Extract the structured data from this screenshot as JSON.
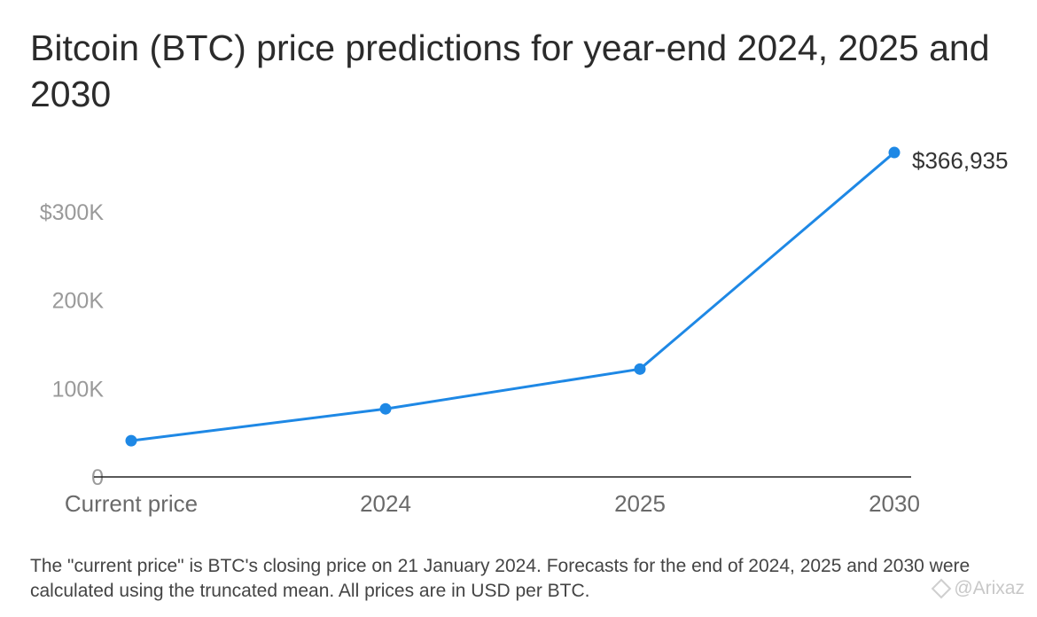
{
  "chart_data": {
    "type": "line",
    "title": "Bitcoin (BTC) price predictions for year-end 2024, 2025 and 2030",
    "categories": [
      "Current price",
      "2024",
      "2025",
      "2030"
    ],
    "series": [
      {
        "values": [
          41000,
          77000,
          122000,
          366935
        ]
      }
    ],
    "ylim": [
      0,
      370000
    ],
    "yticks": [
      {
        "value": 0,
        "label": "0"
      },
      {
        "value": 100000,
        "label": "100K"
      },
      {
        "value": 200000,
        "label": "200K"
      },
      {
        "value": 300000,
        "label": "$300K"
      }
    ],
    "data_labels": [
      {
        "index": 3,
        "label": "$366,935"
      }
    ],
    "grid": false,
    "legend": "none",
    "line_color": "#1e88e5"
  },
  "note": "The \"current price\" is BTC's closing price on 21 January 2024. Forecasts for the end of 2024, 2025 and 2030 were calculated using the truncated mean. All prices are in USD per BTC.",
  "watermark": {
    "text": "@Arixaz",
    "icon": "binance-logo-icon"
  }
}
